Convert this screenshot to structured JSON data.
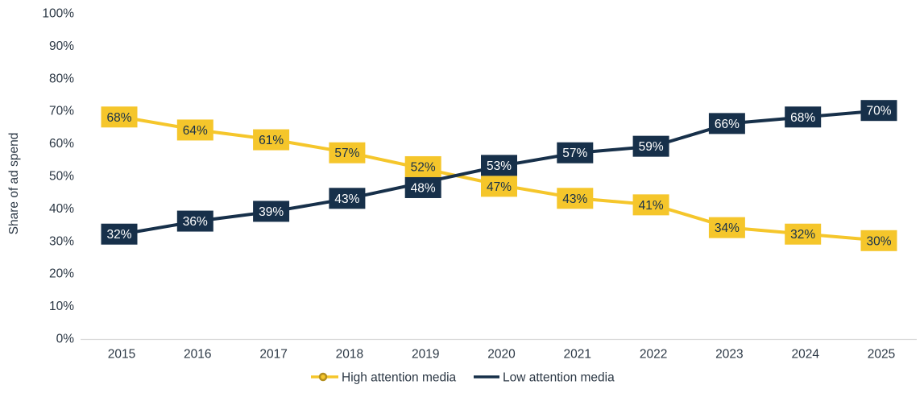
{
  "chart_data": {
    "type": "line",
    "title": "",
    "xlabel": "",
    "ylabel": "Share of ad spend",
    "categories": [
      "2015",
      "2016",
      "2017",
      "2018",
      "2019",
      "2020",
      "2021",
      "2022",
      "2023",
      "2024",
      "2025"
    ],
    "series": [
      {
        "name": "High attention media",
        "color": "#F5C62B",
        "label_text_color": "#17304A",
        "marker": "circle",
        "values": [
          68,
          64,
          61,
          57,
          52,
          47,
          43,
          41,
          34,
          32,
          30
        ]
      },
      {
        "name": "Low attention media",
        "color": "#17304A",
        "label_text_color": "#FFFFFF",
        "marker": "none",
        "values": [
          32,
          36,
          39,
          43,
          48,
          53,
          57,
          59,
          66,
          68,
          70
        ]
      }
    ],
    "ylim": [
      0,
      100
    ],
    "ytick_step": 10,
    "tick_format": "percent",
    "data_labels": "percent",
    "grid": false,
    "legend_position": "bottom-center"
  },
  "colors": {
    "axis_line": "#D9D9D9",
    "tick_text": "#2C3845",
    "legend_marker_ring": "#B48F1F",
    "background": "#FFFFFF"
  }
}
